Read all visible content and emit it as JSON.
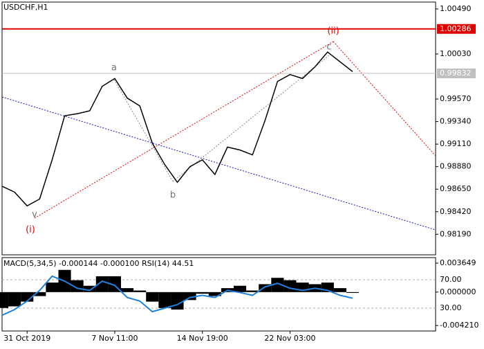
{
  "chart_data": {
    "type": "line",
    "title": "USDCHF,H1",
    "categories": [
      null,
      null,
      "31 Oct 2019",
      null,
      null,
      null,
      null,
      null,
      null,
      "7 Nov 11:00",
      null,
      null,
      null,
      null,
      null,
      null,
      "14 Nov 19:00",
      null,
      null,
      null,
      null,
      null,
      null,
      "22 Nov 03:00",
      null,
      null,
      null,
      null,
      null
    ],
    "series": [
      {
        "color": "#000000",
        "values": [
          0.9868,
          0.9862,
          0.9848,
          0.9855,
          0.9895,
          0.994,
          0.9942,
          0.9945,
          0.997,
          0.9978,
          0.9958,
          0.995,
          0.9912,
          0.989,
          0.9872,
          0.9888,
          0.9895,
          0.988,
          0.9908,
          0.9905,
          0.99,
          0.9935,
          0.9975,
          0.9982,
          0.9978,
          0.999,
          1.0005,
          0.9995,
          0.9985
        ]
      }
    ],
    "ylim": [
      0.9798,
      1.0056
    ],
    "yticks": [
      {
        "value": 1.0049,
        "label": "1.00490"
      },
      {
        "value": 1.0003,
        "label": "1.00030"
      },
      {
        "value": 0.9957,
        "label": "0.99570"
      },
      {
        "value": 0.9934,
        "label": "0.99340"
      },
      {
        "value": 0.9911,
        "label": "0.99110"
      },
      {
        "value": 0.9888,
        "label": "0.98880"
      },
      {
        "value": 0.9865,
        "label": "0.98650"
      },
      {
        "value": 0.9842,
        "label": "0.98420"
      },
      {
        "value": 0.9819,
        "label": "0.98190"
      }
    ],
    "hlines": [
      {
        "value": 1.00286,
        "color": "#e00000"
      },
      {
        "value": 0.99832,
        "color": "#c0c0c0"
      }
    ],
    "annotations": [
      {
        "text": "(i)",
        "color": "#e00000"
      },
      {
        "text": "v",
        "color": "#707070"
      },
      {
        "text": "a",
        "color": "#707070"
      },
      {
        "text": "b",
        "color": "#707070"
      },
      {
        "text": "c",
        "color": "#707070"
      },
      {
        "text": "(ii)",
        "color": "#e00000"
      }
    ],
    "indicator": {
      "title": "MACD(5,34,5) -0.000144 -0.000100 RSI(14) 44.51",
      "macd": {
        "color": "#000000",
        "values": [
          -0.002,
          -0.0018,
          -0.0012,
          -0.0005,
          0.0012,
          0.0028,
          0.0015,
          0.0008,
          0.002,
          0.002,
          0.0005,
          0.0002,
          -0.0012,
          -0.002,
          -0.0022,
          -0.001,
          -0.0002,
          -0.0005,
          0.0005,
          0.0008,
          0.0002,
          0.001,
          0.0018,
          0.0015,
          0.0012,
          0.001,
          0.0012,
          0.0005,
          -0.0001
        ]
      },
      "rsi": {
        "color": "#1e7fdc",
        "axis": "y2",
        "values": [
          20,
          28,
          40,
          55,
          75,
          68,
          58,
          55,
          68,
          62,
          45,
          40,
          25,
          30,
          35,
          45,
          48,
          45,
          55,
          52,
          48,
          60,
          65,
          58,
          55,
          58,
          55,
          48,
          44
        ]
      },
      "ylim": [
        -0.0049,
        0.00435
      ],
      "yticks": [
        0.003649,
        {
          "value": 0,
          "label": "0.000000"
        },
        {
          "value": -0.00421,
          "label": "-0.004210"
        }
      ],
      "y2lim": [
        -2.2,
        101.2
      ],
      "y2ticks": [
        {
          "value": 70,
          "label": "70.00"
        },
        {
          "value": 30,
          "label": "30.00"
        }
      ]
    }
  }
}
